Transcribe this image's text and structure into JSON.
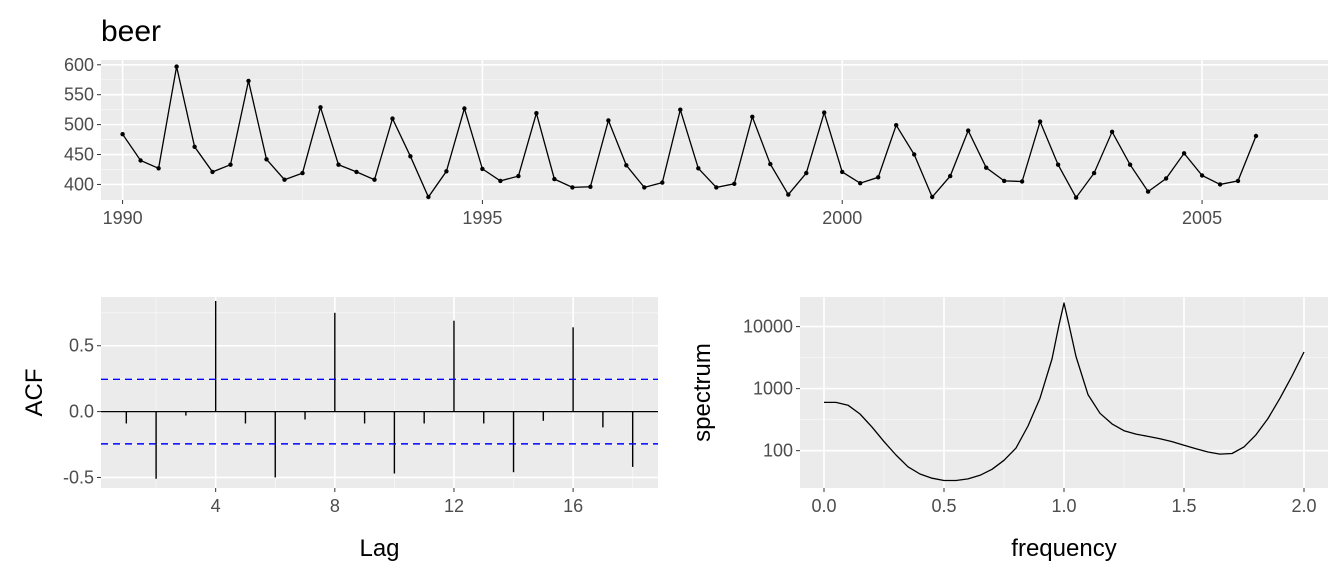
{
  "title": "beer",
  "colors": {
    "panel_background": "#EBEBEB",
    "grid_major": "#FFFFFF",
    "line": "#000000",
    "confidence_bound": "#0000FF"
  },
  "chart_data": [
    {
      "type": "line",
      "name": "beer time series",
      "title": "beer",
      "xlabel": "",
      "ylabel": "",
      "xlim": [
        1989.7,
        2006.75
      ],
      "ylim": [
        374,
        608
      ],
      "x_ticks": [
        1990,
        1995,
        2000,
        2005
      ],
      "x_tick_labels": [
        "1990",
        "1995",
        "2000",
        "2005"
      ],
      "y_ticks": [
        400,
        450,
        500,
        550,
        600
      ],
      "y_tick_labels": [
        "400",
        "450",
        "500",
        "550",
        "600"
      ],
      "grid": true,
      "markers": true,
      "start": 1990.0,
      "frequency": 4,
      "values": [
        484,
        440,
        427,
        597,
        463,
        421,
        433,
        573,
        442,
        408,
        419,
        529,
        433,
        421,
        408,
        510,
        447,
        379,
        422,
        527,
        426,
        406,
        414,
        519,
        409,
        395,
        396,
        507,
        432,
        395,
        403,
        525,
        427,
        395,
        401,
        513,
        434,
        383,
        419,
        520,
        421,
        402,
        412,
        499,
        450,
        379,
        414,
        490,
        428,
        406,
        405,
        505,
        433,
        378,
        419,
        488,
        433,
        388,
        410,
        452,
        415,
        400,
        406,
        481
      ]
    },
    {
      "type": "bar",
      "name": "ACF",
      "xlabel": "Lag",
      "ylabel": "ACF",
      "xlim": [
        0.15,
        18.85
      ],
      "ylim": [
        -0.58,
        0.87
      ],
      "x_ticks": [
        4,
        8,
        12,
        16
      ],
      "x_tick_labels": [
        "4",
        "8",
        "12",
        "16"
      ],
      "y_ticks": [
        -0.5,
        0.0,
        0.5
      ],
      "y_tick_labels": [
        "-0.5",
        "0.0",
        "0.5"
      ],
      "grid": true,
      "lags": [
        1,
        2,
        3,
        4,
        5,
        6,
        7,
        8,
        9,
        10,
        11,
        12,
        13,
        14,
        15,
        16,
        17,
        18
      ],
      "values": [
        -0.09,
        -0.51,
        -0.03,
        0.84,
        -0.09,
        -0.5,
        -0.06,
        0.75,
        -0.09,
        -0.47,
        -0.09,
        0.69,
        -0.09,
        -0.46,
        -0.07,
        0.64,
        -0.12,
        -0.42
      ],
      "confidence_bounds": [
        0.245,
        -0.245
      ]
    },
    {
      "type": "line",
      "name": "spectrum",
      "xlabel": "frequency",
      "ylabel": "spectrum",
      "xlim": [
        -0.1,
        2.1
      ],
      "ylim": [
        25,
        30000
      ],
      "log_y": true,
      "x_ticks": [
        0.0,
        0.5,
        1.0,
        1.5,
        2.0
      ],
      "x_tick_labels": [
        "0.0",
        "0.5",
        "1.0",
        "1.5",
        "2.0"
      ],
      "y_ticks": [
        100,
        1000,
        10000
      ],
      "y_tick_labels": [
        "100",
        "1000",
        "10000"
      ],
      "grid": true,
      "x": [
        0.0,
        0.05,
        0.1,
        0.15,
        0.2,
        0.25,
        0.3,
        0.35,
        0.4,
        0.45,
        0.5,
        0.55,
        0.6,
        0.65,
        0.7,
        0.75,
        0.8,
        0.85,
        0.9,
        0.95,
        0.98,
        1.0,
        1.02,
        1.05,
        1.1,
        1.15,
        1.2,
        1.25,
        1.3,
        1.35,
        1.4,
        1.45,
        1.5,
        1.55,
        1.6,
        1.65,
        1.7,
        1.75,
        1.8,
        1.85,
        1.9,
        1.95,
        2.0
      ],
      "y": [
        600,
        600,
        540,
        390,
        240,
        140,
        85,
        55,
        42,
        36,
        33,
        33,
        35,
        40,
        50,
        70,
        110,
        250,
        700,
        3000,
        11000,
        24000,
        11000,
        3300,
        800,
        400,
        270,
        210,
        185,
        170,
        155,
        140,
        122,
        107,
        95,
        88,
        90,
        115,
        180,
        330,
        700,
        1600,
        3900
      ]
    }
  ]
}
